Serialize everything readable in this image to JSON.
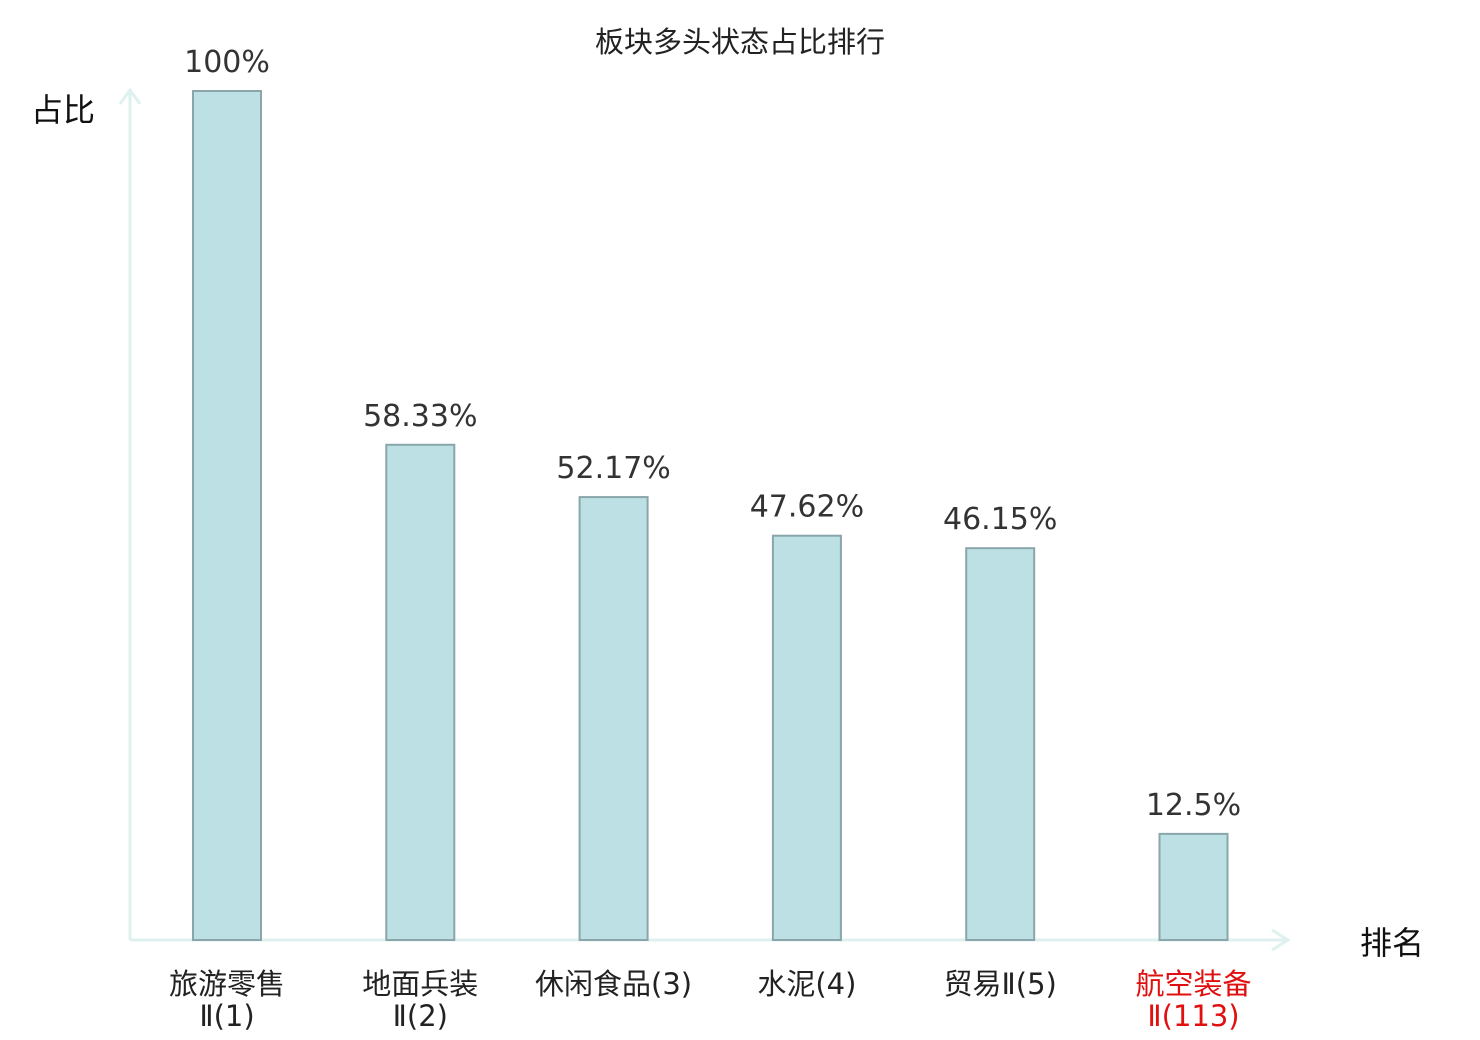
{
  "chart_data": {
    "type": "bar",
    "title": "板块多头状态占比排行",
    "ylabel": "占比",
    "xlabel": "排名",
    "ylim": [
      0,
      100
    ],
    "grid": false,
    "categories": [
      {
        "name": "旅游零售",
        "suffix": "Ⅱ(1)",
        "highlight": false
      },
      {
        "name": "地面兵装",
        "suffix": "Ⅱ(2)",
        "highlight": false
      },
      {
        "name": "休闲食品",
        "suffix": "(3)",
        "highlight": false
      },
      {
        "name": "水泥",
        "suffix": "(4)",
        "highlight": false
      },
      {
        "name": "贸易",
        "suffix": "Ⅱ(5)",
        "highlight": false
      },
      {
        "name": "航空装备",
        "suffix": "Ⅱ(113)",
        "highlight": true
      }
    ],
    "values": [
      100,
      58.33,
      52.17,
      47.62,
      46.15,
      12.5
    ],
    "value_labels": [
      "100%",
      "58.33%",
      "52.17%",
      "47.62%",
      "46.15%",
      "12.5%"
    ]
  },
  "colors": {
    "bar_fill": "#bce0e3",
    "bar_stroke": "#8aa6aa",
    "axis": "#dff1ef",
    "highlight_text": "#e01010",
    "text": "#222222"
  }
}
